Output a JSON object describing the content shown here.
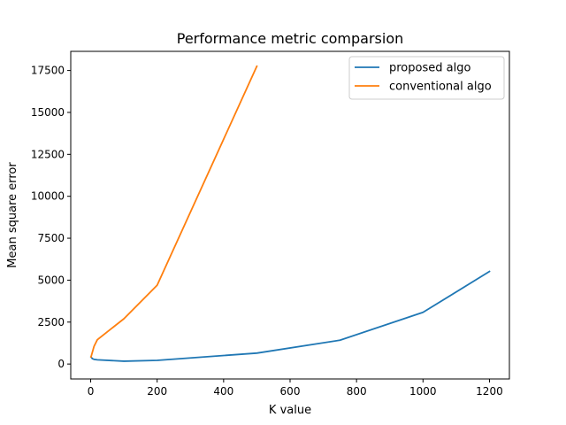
{
  "chart_data": {
    "type": "line",
    "title": "Performance metric comparsion",
    "xlabel": "K value",
    "ylabel": "Mean square error",
    "xlim": [
      -60,
      1260
    ],
    "ylim": [
      -890,
      18640
    ],
    "xticks": [
      0,
      200,
      400,
      600,
      800,
      1000,
      1200
    ],
    "yticks": [
      0,
      2500,
      5000,
      7500,
      10000,
      12500,
      15000,
      17500
    ],
    "grid": false,
    "legend_position": "top-right",
    "series": [
      {
        "name": "proposed algo",
        "color": "#1f77b4",
        "x": [
          1,
          5,
          10,
          20,
          100,
          200,
          500,
          750,
          1000,
          1200
        ],
        "y": [
          420,
          320,
          280,
          250,
          170,
          220,
          650,
          1420,
          3080,
          5520
        ]
      },
      {
        "name": "conventional algo",
        "color": "#ff7f0e",
        "x": [
          1,
          5,
          10,
          20,
          100,
          200,
          500
        ],
        "y": [
          420,
          700,
          1050,
          1450,
          2700,
          4700,
          17750
        ]
      }
    ]
  }
}
